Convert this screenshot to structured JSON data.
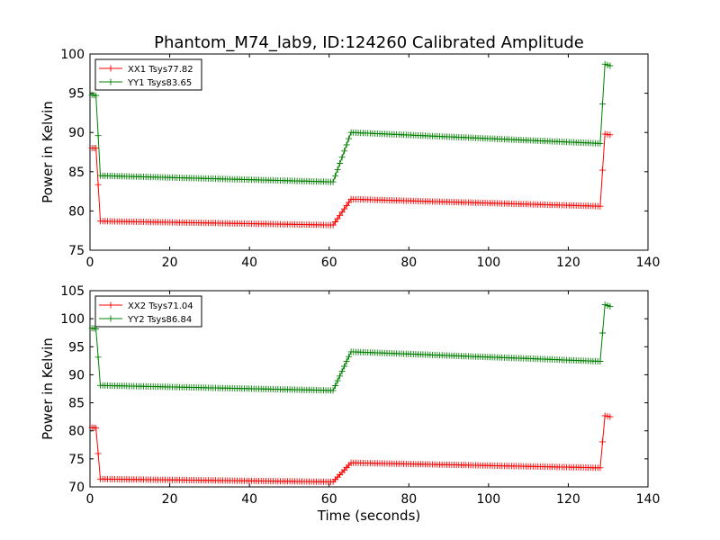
{
  "chart_data": [
    {
      "type": "line",
      "title": "Phantom_M74_lab9, ID:124260 Calibrated Amplitude",
      "xlabel": "",
      "ylabel": "Power in Kelvin",
      "xlim": [
        0,
        140
      ],
      "ylim": [
        75,
        100
      ],
      "xticks": [
        0,
        20,
        40,
        60,
        80,
        100,
        120,
        140
      ],
      "yticks": [
        75,
        80,
        85,
        90,
        95,
        100
      ],
      "grid": false,
      "legend_position": "top-left",
      "series": [
        {
          "name": "XX1 Tsys77.82",
          "color": "#ff0000",
          "marker": "plus",
          "segments": [
            {
              "x0": 0.5,
              "x1": 1.5,
              "y0": 88.0,
              "y1": 88.0
            },
            {
              "x0": 1.5,
              "x1": 2.6,
              "y0": 88.0,
              "y1": 78.7
            },
            {
              "x0": 2.6,
              "x1": 61.0,
              "y0": 78.7,
              "y1": 78.2
            },
            {
              "x0": 61.0,
              "x1": 65.5,
              "y0": 78.2,
              "y1": 81.5
            },
            {
              "x0": 65.5,
              "x1": 128.0,
              "y0": 81.5,
              "y1": 80.6
            },
            {
              "x0": 128.0,
              "x1": 129.2,
              "y0": 80.6,
              "y1": 89.8
            },
            {
              "x0": 129.2,
              "x1": 130.5,
              "y0": 89.8,
              "y1": 89.7
            }
          ]
        },
        {
          "name": "YY1 Tsys83.65",
          "color": "#008000",
          "marker": "plus",
          "segments": [
            {
              "x0": 0.5,
              "x1": 1.5,
              "y0": 94.8,
              "y1": 94.7
            },
            {
              "x0": 1.5,
              "x1": 2.6,
              "y0": 94.7,
              "y1": 84.5
            },
            {
              "x0": 2.6,
              "x1": 61.0,
              "y0": 84.5,
              "y1": 83.7
            },
            {
              "x0": 61.0,
              "x1": 65.5,
              "y0": 83.7,
              "y1": 90.0
            },
            {
              "x0": 65.5,
              "x1": 128.0,
              "y0": 90.0,
              "y1": 88.6
            },
            {
              "x0": 128.0,
              "x1": 129.2,
              "y0": 88.6,
              "y1": 98.7
            },
            {
              "x0": 129.2,
              "x1": 130.5,
              "y0": 98.7,
              "y1": 98.5
            }
          ]
        }
      ]
    },
    {
      "type": "line",
      "title": "",
      "xlabel": "Time (seconds)",
      "ylabel": "Power in Kelvin",
      "xlim": [
        0,
        140
      ],
      "ylim": [
        70,
        105
      ],
      "xticks": [
        0,
        20,
        40,
        60,
        80,
        100,
        120,
        140
      ],
      "yticks": [
        70,
        75,
        80,
        85,
        90,
        95,
        100,
        105
      ],
      "grid": false,
      "legend_position": "top-left",
      "series": [
        {
          "name": "XX2 Tsys71.04",
          "color": "#ff0000",
          "marker": "plus",
          "segments": [
            {
              "x0": 0.5,
              "x1": 1.5,
              "y0": 80.6,
              "y1": 80.5
            },
            {
              "x0": 1.5,
              "x1": 2.6,
              "y0": 80.5,
              "y1": 71.4
            },
            {
              "x0": 2.6,
              "x1": 61.0,
              "y0": 71.4,
              "y1": 70.9
            },
            {
              "x0": 61.0,
              "x1": 65.5,
              "y0": 70.9,
              "y1": 74.3
            },
            {
              "x0": 65.5,
              "x1": 128.0,
              "y0": 74.3,
              "y1": 73.4
            },
            {
              "x0": 128.0,
              "x1": 129.2,
              "y0": 73.4,
              "y1": 82.7
            },
            {
              "x0": 129.2,
              "x1": 130.5,
              "y0": 82.7,
              "y1": 82.5
            }
          ]
        },
        {
          "name": "YY2 Tsys86.84",
          "color": "#008000",
          "marker": "plus",
          "segments": [
            {
              "x0": 0.5,
              "x1": 1.5,
              "y0": 98.3,
              "y1": 98.2
            },
            {
              "x0": 1.5,
              "x1": 2.6,
              "y0": 98.2,
              "y1": 88.1
            },
            {
              "x0": 2.6,
              "x1": 61.0,
              "y0": 88.1,
              "y1": 87.2
            },
            {
              "x0": 61.0,
              "x1": 65.5,
              "y0": 87.2,
              "y1": 94.1
            },
            {
              "x0": 65.5,
              "x1": 128.0,
              "y0": 94.1,
              "y1": 92.4
            },
            {
              "x0": 128.0,
              "x1": 129.2,
              "y0": 92.4,
              "y1": 102.5
            },
            {
              "x0": 129.2,
              "x1": 130.5,
              "y0": 102.5,
              "y1": 102.2
            }
          ]
        }
      ]
    }
  ]
}
